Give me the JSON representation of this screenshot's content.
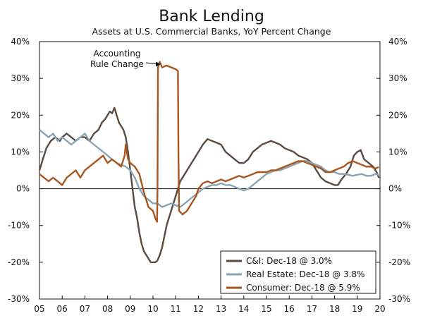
{
  "chart_data": {
    "type": "line",
    "title": "Bank Lending",
    "subtitle": "Assets at U.S. Commercial Banks, YoY Percent Change",
    "xlabel": "",
    "ylabel": "",
    "xlim": [
      2005,
      2020
    ],
    "ylim": [
      -30,
      40
    ],
    "y_ticks": [
      -30,
      -20,
      -10,
      0,
      10,
      20,
      30,
      40
    ],
    "y_tick_labels": [
      "-30%",
      "-20%",
      "-10%",
      "0%",
      "10%",
      "20%",
      "30%",
      "40%"
    ],
    "x_ticks": [
      2005,
      2006,
      2007,
      2008,
      2009,
      2010,
      2011,
      2012,
      2013,
      2014,
      2015,
      2016,
      2017,
      2018,
      2019,
      2020
    ],
    "x_tick_labels": [
      "05",
      "06",
      "07",
      "08",
      "09",
      "10",
      "11",
      "12",
      "13",
      "14",
      "15",
      "16",
      "17",
      "18",
      "19",
      "20"
    ],
    "grid": false,
    "zero_line": true,
    "dual_axis_same_scale": true,
    "legend_position": "bottom-right",
    "annotation": {
      "text_line1": "Accounting",
      "text_line2": "Rule Change",
      "x": 2010.3,
      "y": 34
    },
    "series": [
      {
        "name": "C&I: Dec-18 @ 3.0%",
        "color": "#5a4a42",
        "points": [
          [
            2005.0,
            5
          ],
          [
            2005.15,
            8
          ],
          [
            2005.3,
            11
          ],
          [
            2005.5,
            13
          ],
          [
            2005.7,
            14
          ],
          [
            2005.9,
            13
          ],
          [
            2006.0,
            14
          ],
          [
            2006.2,
            15
          ],
          [
            2006.4,
            14
          ],
          [
            2006.6,
            13
          ],
          [
            2006.8,
            14
          ],
          [
            2007.0,
            14
          ],
          [
            2007.2,
            13
          ],
          [
            2007.4,
            15
          ],
          [
            2007.6,
            16
          ],
          [
            2007.75,
            18
          ],
          [
            2007.9,
            19
          ],
          [
            2008.0,
            20
          ],
          [
            2008.1,
            21
          ],
          [
            2008.2,
            20.5
          ],
          [
            2008.3,
            22
          ],
          [
            2008.4,
            20
          ],
          [
            2008.5,
            18
          ],
          [
            2008.6,
            17
          ],
          [
            2008.7,
            16
          ],
          [
            2008.8,
            14
          ],
          [
            2008.9,
            10
          ],
          [
            2009.0,
            5
          ],
          [
            2009.1,
            0
          ],
          [
            2009.2,
            -5
          ],
          [
            2009.3,
            -8
          ],
          [
            2009.4,
            -12
          ],
          [
            2009.5,
            -15
          ],
          [
            2009.6,
            -17
          ],
          [
            2009.7,
            -18
          ],
          [
            2009.8,
            -19
          ],
          [
            2009.9,
            -20
          ],
          [
            2010.0,
            -20
          ],
          [
            2010.1,
            -20
          ],
          [
            2010.2,
            -19.5
          ],
          [
            2010.3,
            -18
          ],
          [
            2010.4,
            -16
          ],
          [
            2010.5,
            -13
          ],
          [
            2010.6,
            -10
          ],
          [
            2010.7,
            -8
          ],
          [
            2010.8,
            -6
          ],
          [
            2010.9,
            -4
          ],
          [
            2011.0,
            -2
          ],
          [
            2011.1,
            0
          ],
          [
            2011.2,
            2
          ],
          [
            2011.4,
            4
          ],
          [
            2011.6,
            6
          ],
          [
            2011.8,
            8
          ],
          [
            2012.0,
            10
          ],
          [
            2012.2,
            12
          ],
          [
            2012.4,
            13.5
          ],
          [
            2012.6,
            13
          ],
          [
            2012.8,
            12.5
          ],
          [
            2013.0,
            12
          ],
          [
            2013.2,
            10
          ],
          [
            2013.4,
            9
          ],
          [
            2013.6,
            8
          ],
          [
            2013.8,
            7
          ],
          [
            2014.0,
            7
          ],
          [
            2014.2,
            8
          ],
          [
            2014.4,
            10
          ],
          [
            2014.6,
            11
          ],
          [
            2014.8,
            12
          ],
          [
            2015.0,
            12.5
          ],
          [
            2015.2,
            13
          ],
          [
            2015.4,
            12.5
          ],
          [
            2015.6,
            12
          ],
          [
            2015.8,
            11
          ],
          [
            2016.0,
            10.5
          ],
          [
            2016.2,
            10
          ],
          [
            2016.4,
            9
          ],
          [
            2016.6,
            8.5
          ],
          [
            2016.8,
            8
          ],
          [
            2017.0,
            7
          ],
          [
            2017.2,
            5
          ],
          [
            2017.4,
            3
          ],
          [
            2017.6,
            2
          ],
          [
            2017.8,
            1.5
          ],
          [
            2018.0,
            1
          ],
          [
            2018.15,
            1
          ],
          [
            2018.3,
            2.5
          ],
          [
            2018.5,
            4
          ],
          [
            2018.7,
            6
          ],
          [
            2018.85,
            9
          ],
          [
            2019.0,
            10
          ],
          [
            2019.15,
            10.5
          ],
          [
            2019.3,
            8
          ],
          [
            2019.5,
            7
          ],
          [
            2019.7,
            6
          ],
          [
            2019.85,
            4.5
          ],
          [
            2019.95,
            3
          ]
        ]
      },
      {
        "name": "Real Estate: Dec-18 @ 3.8%",
        "color": "#8ba4b4",
        "points": [
          [
            2005.0,
            16
          ],
          [
            2005.2,
            15
          ],
          [
            2005.4,
            14
          ],
          [
            2005.6,
            15
          ],
          [
            2005.8,
            13
          ],
          [
            2006.0,
            14
          ],
          [
            2006.2,
            13
          ],
          [
            2006.4,
            12
          ],
          [
            2006.6,
            13
          ],
          [
            2006.8,
            14
          ],
          [
            2007.0,
            15
          ],
          [
            2007.2,
            13
          ],
          [
            2007.4,
            12
          ],
          [
            2007.6,
            11
          ],
          [
            2007.8,
            10
          ],
          [
            2008.0,
            9
          ],
          [
            2008.2,
            8
          ],
          [
            2008.4,
            7
          ],
          [
            2008.6,
            6.5
          ],
          [
            2008.8,
            6
          ],
          [
            2009.0,
            5
          ],
          [
            2009.2,
            3
          ],
          [
            2009.4,
            0
          ],
          [
            2009.6,
            -2
          ],
          [
            2009.8,
            -3
          ],
          [
            2010.0,
            -4
          ],
          [
            2010.2,
            -4
          ],
          [
            2010.4,
            -5
          ],
          [
            2010.6,
            -4.5
          ],
          [
            2010.8,
            -4
          ],
          [
            2011.0,
            -4.5
          ],
          [
            2011.2,
            -5
          ],
          [
            2011.4,
            -4
          ],
          [
            2011.6,
            -3
          ],
          [
            2011.8,
            -2
          ],
          [
            2012.0,
            -1
          ],
          [
            2012.2,
            0
          ],
          [
            2012.4,
            0.5
          ],
          [
            2012.6,
            1
          ],
          [
            2012.8,
            1
          ],
          [
            2013.0,
            1.5
          ],
          [
            2013.2,
            1
          ],
          [
            2013.4,
            1
          ],
          [
            2013.6,
            0.5
          ],
          [
            2013.8,
            0
          ],
          [
            2014.0,
            -0.5
          ],
          [
            2014.2,
            0
          ],
          [
            2014.4,
            1
          ],
          [
            2014.6,
            2
          ],
          [
            2014.8,
            3
          ],
          [
            2015.0,
            4
          ],
          [
            2015.2,
            4.5
          ],
          [
            2015.4,
            5
          ],
          [
            2015.6,
            5
          ],
          [
            2015.8,
            5.5
          ],
          [
            2016.0,
            6
          ],
          [
            2016.2,
            6.5
          ],
          [
            2016.4,
            7
          ],
          [
            2016.6,
            7.5
          ],
          [
            2016.8,
            7.5
          ],
          [
            2017.0,
            7
          ],
          [
            2017.2,
            6.5
          ],
          [
            2017.4,
            6
          ],
          [
            2017.6,
            5
          ],
          [
            2017.8,
            4.5
          ],
          [
            2018.0,
            4.5
          ],
          [
            2018.2,
            4
          ],
          [
            2018.4,
            4
          ],
          [
            2018.6,
            3.8
          ],
          [
            2018.8,
            3.5
          ],
          [
            2019.0,
            3.8
          ],
          [
            2019.2,
            4
          ],
          [
            2019.4,
            3.5
          ],
          [
            2019.6,
            3.5
          ],
          [
            2019.8,
            4
          ],
          [
            2019.95,
            3.8
          ]
        ]
      },
      {
        "name": "Consumer: Dec-18 @ 5.9%",
        "color": "#a8561f",
        "points": [
          [
            2005.0,
            4
          ],
          [
            2005.2,
            3
          ],
          [
            2005.4,
            2
          ],
          [
            2005.6,
            3
          ],
          [
            2005.8,
            2
          ],
          [
            2006.0,
            1
          ],
          [
            2006.2,
            3
          ],
          [
            2006.4,
            4
          ],
          [
            2006.6,
            5
          ],
          [
            2006.8,
            3
          ],
          [
            2007.0,
            5
          ],
          [
            2007.2,
            6
          ],
          [
            2007.4,
            7
          ],
          [
            2007.6,
            8
          ],
          [
            2007.8,
            9
          ],
          [
            2008.0,
            7
          ],
          [
            2008.2,
            8
          ],
          [
            2008.4,
            7
          ],
          [
            2008.6,
            6
          ],
          [
            2008.75,
            9
          ],
          [
            2008.8,
            12
          ],
          [
            2008.9,
            8
          ],
          [
            2009.0,
            7
          ],
          [
            2009.2,
            6
          ],
          [
            2009.4,
            4
          ],
          [
            2009.6,
            -1
          ],
          [
            2009.8,
            -5
          ],
          [
            2010.0,
            -6
          ],
          [
            2010.1,
            -8
          ],
          [
            2010.18,
            -9
          ],
          [
            2010.2,
            0
          ],
          [
            2010.22,
            33
          ],
          [
            2010.3,
            34.5
          ],
          [
            2010.4,
            33
          ],
          [
            2010.6,
            33.5
          ],
          [
            2010.8,
            33
          ],
          [
            2011.0,
            32.5
          ],
          [
            2011.1,
            32
          ],
          [
            2011.12,
            10
          ],
          [
            2011.15,
            -6
          ],
          [
            2011.3,
            -7
          ],
          [
            2011.5,
            -6
          ],
          [
            2011.7,
            -4
          ],
          [
            2011.9,
            -2
          ],
          [
            2012.0,
            0
          ],
          [
            2012.2,
            1.5
          ],
          [
            2012.4,
            2
          ],
          [
            2012.6,
            1.5
          ],
          [
            2012.8,
            2
          ],
          [
            2013.0,
            2.5
          ],
          [
            2013.2,
            2
          ],
          [
            2013.4,
            2.5
          ],
          [
            2013.6,
            3
          ],
          [
            2013.8,
            3.5
          ],
          [
            2014.0,
            3
          ],
          [
            2014.2,
            3.5
          ],
          [
            2014.4,
            4
          ],
          [
            2014.6,
            4.5
          ],
          [
            2014.8,
            4.5
          ],
          [
            2015.0,
            4.5
          ],
          [
            2015.2,
            5
          ],
          [
            2015.4,
            5
          ],
          [
            2015.6,
            5.5
          ],
          [
            2015.8,
            6
          ],
          [
            2016.0,
            6.5
          ],
          [
            2016.2,
            7
          ],
          [
            2016.4,
            7.5
          ],
          [
            2016.6,
            7.5
          ],
          [
            2016.8,
            7
          ],
          [
            2017.0,
            6.5
          ],
          [
            2017.2,
            6
          ],
          [
            2017.4,
            5.5
          ],
          [
            2017.6,
            4.5
          ],
          [
            2017.8,
            4.5
          ],
          [
            2018.0,
            5
          ],
          [
            2018.2,
            5.5
          ],
          [
            2018.4,
            6
          ],
          [
            2018.6,
            7
          ],
          [
            2018.8,
            7.5
          ],
          [
            2019.0,
            7
          ],
          [
            2019.2,
            6.5
          ],
          [
            2019.4,
            6
          ],
          [
            2019.6,
            6
          ],
          [
            2019.8,
            5.5
          ],
          [
            2019.95,
            5.9
          ]
        ]
      }
    ]
  }
}
